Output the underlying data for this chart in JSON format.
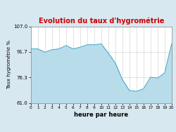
{
  "title": "Evolution du taux d'hygrométrie",
  "title_color": "#cc0000",
  "xlabel": "heure par heure",
  "ylabel": "Taux hygrométrie %",
  "background_color": "#d8e8f0",
  "plot_bg_color": "#ffffff",
  "fill_color": "#b8dcea",
  "line_color": "#44aacc",
  "ylim": [
    61.0,
    107.0
  ],
  "yticks": [
    61.0,
    76.3,
    91.7,
    107.0
  ],
  "xtick_labels": [
    "0",
    "1",
    "2",
    "3",
    "4",
    "5",
    "6",
    "7",
    "8",
    "9",
    "10",
    "11",
    "12",
    "13",
    "14",
    "15",
    "16",
    "17",
    "18",
    "19",
    "20"
  ],
  "hours": [
    0,
    1,
    2,
    3,
    4,
    5,
    6,
    7,
    8,
    9,
    10,
    11,
    12,
    13,
    14,
    15,
    16,
    17,
    18,
    19,
    20
  ],
  "values": [
    93.5,
    93.5,
    91.5,
    93.0,
    93.5,
    95.5,
    93.5,
    94.5,
    96.0,
    96.0,
    96.5,
    91.0,
    85.0,
    75.0,
    68.5,
    68.0,
    69.5,
    76.5,
    76.0,
    79.0,
    96.5
  ]
}
